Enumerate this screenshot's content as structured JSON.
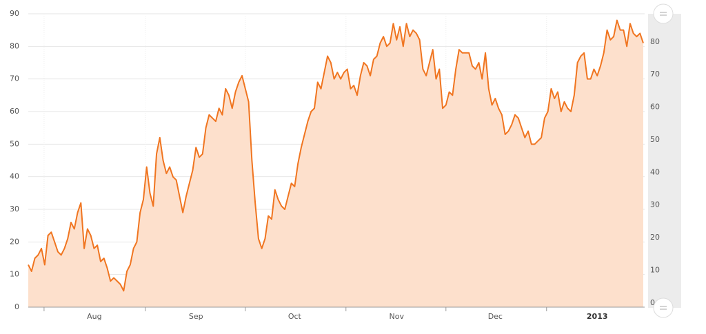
{
  "chart_data": {
    "type": "area",
    "values": [
      13,
      11,
      15,
      16,
      18,
      13,
      22,
      23,
      20,
      17,
      16,
      18,
      21,
      26,
      24,
      29,
      32,
      18,
      24,
      22,
      18,
      19,
      14,
      15,
      12,
      8,
      9,
      8,
      7,
      5,
      11,
      13,
      18,
      20,
      29,
      33,
      43,
      35,
      31,
      47,
      52,
      45,
      41,
      43,
      40,
      39,
      34,
      29,
      34,
      38,
      42,
      49,
      46,
      47,
      55,
      59,
      58,
      57,
      61,
      59,
      67,
      65,
      61,
      66,
      69,
      71,
      67,
      63,
      45,
      32,
      21,
      18,
      21,
      28,
      27,
      36,
      33,
      31,
      30,
      34,
      38,
      37,
      44,
      49,
      53,
      57,
      60,
      61,
      69,
      67,
      72,
      77,
      75,
      70,
      72,
      70,
      72,
      73,
      67,
      68,
      65,
      71,
      75,
      74,
      71,
      76,
      77,
      81,
      83,
      80,
      81,
      87,
      82,
      86,
      80,
      87,
      83,
      85,
      84,
      82,
      73,
      71,
      75,
      79,
      70,
      73,
      61,
      62,
      66,
      65,
      73,
      79,
      78,
      78,
      78,
      74,
      73,
      75,
      70,
      78,
      67,
      62,
      64,
      61,
      59,
      53,
      54,
      56,
      59,
      58,
      55,
      52,
      54,
      50,
      50,
      51,
      52,
      58,
      60,
      67,
      64,
      66,
      60,
      63,
      61,
      60,
      65,
      75,
      77,
      78,
      70,
      70,
      73,
      71,
      74,
      78,
      85,
      82,
      83,
      88,
      85,
      85,
      80,
      87,
      84,
      83,
      84,
      81
    ],
    "color": "#f07520",
    "fill": "#fde0cc",
    "xlim": [
      0,
      187
    ],
    "xticks": [
      {
        "value": 20.1,
        "label": "Aug"
      },
      {
        "value": 51,
        "label": "Sep"
      },
      {
        "value": 81,
        "label": "Oct"
      },
      {
        "value": 112,
        "label": "Nov"
      },
      {
        "value": 142,
        "label": "Dec"
      },
      {
        "value": 173,
        "label": "2013"
      }
    ],
    "xboundaries": [
      4.8,
      35.6,
      66,
      96.6,
      127,
      157.6
    ],
    "ylim": [
      0,
      90
    ],
    "yticks": [
      0,
      10,
      20,
      30,
      40,
      50,
      60,
      70,
      80,
      90
    ],
    "y2lim": [
      -1.3,
      88.6
    ],
    "y2ticks": [
      0,
      10,
      20,
      30,
      40,
      50,
      60,
      70,
      80
    ],
    "grid": true
  }
}
